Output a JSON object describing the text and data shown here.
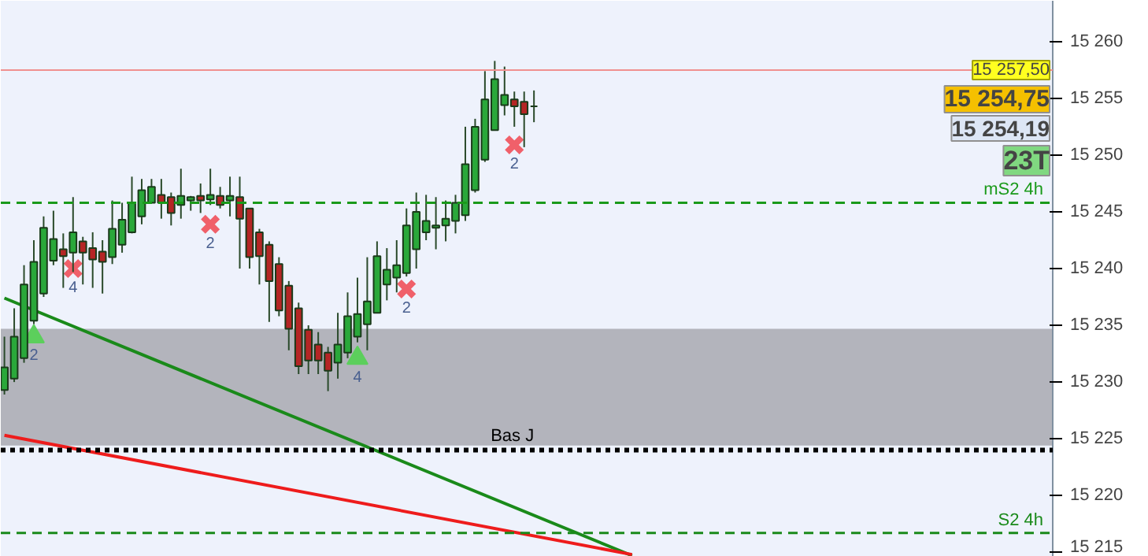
{
  "chart_data": {
    "type": "candlestick",
    "tick_labels": "y",
    "grid": false,
    "categories": [
      null,
      null,
      null,
      null,
      null,
      null,
      null,
      null,
      null,
      null,
      null,
      null,
      null,
      null,
      null,
      null,
      null,
      null,
      null,
      null,
      null,
      null,
      null,
      null,
      null,
      null,
      null,
      null,
      null,
      null,
      null,
      null,
      null,
      null,
      null,
      null,
      null,
      null,
      null,
      null,
      null,
      null,
      null,
      null,
      null,
      null,
      null,
      null,
      null,
      null,
      null,
      null,
      null,
      null,
      null,
      null,
      null,
      null,
      null,
      null,
      null,
      null,
      null,
      null,
      null,
      null,
      null,
      null,
      null,
      null,
      null,
      null,
      null,
      null,
      null,
      null,
      null,
      null,
      null,
      null,
      null,
      null,
      null,
      null,
      null,
      null,
      null,
      null,
      null,
      null,
      null,
      null,
      null,
      null,
      null,
      null,
      null,
      null,
      null,
      null,
      null,
      null,
      null,
      null,
      null,
      null,
      null
    ],
    "ohlc": [
      [
        15229.3,
        15234.0,
        15228.9,
        15231.3
      ],
      [
        15230.3,
        15236.5,
        15230.0,
        15234.0
      ],
      [
        15232.1,
        15240.3,
        15231.7,
        15238.6
      ],
      [
        15235.4,
        15242.5,
        15235.1,
        15240.6
      ],
      [
        15237.8,
        15244.6,
        15237.5,
        15243.6
      ],
      [
        15240.7,
        15245.1,
        15240.3,
        15242.6
      ],
      [
        15241.7,
        15243.1,
        15238.3,
        15241.1
      ],
      [
        15241.4,
        15246.3,
        15239.7,
        15243.2
      ],
      [
        15242.4,
        15242.8,
        15238.6,
        15241.4
      ],
      [
        15241.8,
        15243.2,
        15238.3,
        15240.8
      ],
      [
        15241.5,
        15242.5,
        15237.8,
        15240.6
      ],
      [
        15241.0,
        15246.0,
        15240.4,
        15243.5
      ],
      [
        15242.1,
        15245.8,
        15241.4,
        15244.3
      ],
      [
        15243.2,
        15248.1,
        15243.1,
        15245.8
      ],
      [
        15244.6,
        15247.9,
        15243.9,
        15246.9
      ],
      [
        15245.8,
        15247.9,
        15245.8,
        15247.2
      ],
      [
        15246.5,
        15247.9,
        15244.4,
        15245.8
      ],
      [
        15246.3,
        15246.7,
        15243.8,
        15244.9
      ],
      [
        15245.6,
        15248.8,
        15244.4,
        15246.4
      ],
      [
        15246.0,
        15246.4,
        15245.1,
        15246.3
      ],
      [
        15246.4,
        15247.5,
        15244.9,
        15246.0
      ],
      [
        15246.1,
        15248.8,
        15245.6,
        15246.5
      ],
      [
        15246.4,
        15247.2,
        15245.3,
        15245.6
      ],
      [
        15246.0,
        15248.1,
        15244.6,
        15246.4
      ],
      [
        15246.3,
        15248.1,
        15240.0,
        15244.4
      ],
      [
        15245.3,
        15245.3,
        15240.0,
        15241.0
      ],
      [
        15243.2,
        15243.5,
        15238.6,
        15241.1
      ],
      [
        15242.1,
        15242.4,
        15235.3,
        15238.9
      ],
      [
        15240.4,
        15241.0,
        15235.8,
        15236.3
      ],
      [
        15238.5,
        15238.9,
        15232.8,
        15234.7
      ],
      [
        15236.5,
        15237.0,
        15230.7,
        15231.4
      ],
      [
        15234.6,
        15235.0,
        15230.7,
        15231.9
      ],
      [
        15233.3,
        15234.4,
        15230.7,
        15231.9
      ],
      [
        15232.6,
        15233.1,
        15229.2,
        15231.0
      ],
      [
        15231.7,
        15236.1,
        15230.3,
        15233.3
      ],
      [
        15232.6,
        15237.9,
        15232.1,
        15235.8
      ],
      [
        15234.0,
        15239.2,
        15233.5,
        15236.0
      ],
      [
        15235.1,
        15241.0,
        15232.8,
        15237.1
      ],
      [
        15236.1,
        15242.4,
        15236.1,
        15241.1
      ],
      [
        15238.6,
        15241.8,
        15237.2,
        15239.9
      ],
      [
        15239.2,
        15242.5,
        15237.9,
        15240.3
      ],
      [
        15239.6,
        15245.3,
        15239.3,
        15243.8
      ],
      [
        15241.7,
        15246.7,
        15240.0,
        15245.0
      ],
      [
        15243.2,
        15246.5,
        15242.5,
        15244.2
      ],
      [
        15243.6,
        15246.3,
        15241.7,
        15243.8
      ],
      [
        15243.8,
        15246.0,
        15242.4,
        15244.4
      ],
      [
        15244.2,
        15246.5,
        15243.1,
        15245.8
      ],
      [
        15244.7,
        15252.5,
        15244.2,
        15249.2
      ],
      [
        15246.9,
        15253.2,
        15246.7,
        15252.5
      ],
      [
        15249.6,
        15257.4,
        15249.4,
        15254.9
      ],
      [
        15252.2,
        15258.3,
        15252.2,
        15256.7
      ],
      [
        15254.4,
        15257.8,
        15253.5,
        15255.3
      ],
      [
        15254.9,
        15255.6,
        15252.5,
        15254.3
      ],
      [
        15254.7,
        15255.6,
        15250.7,
        15253.6
      ],
      [
        15254.3,
        15255.7,
        15252.9,
        15254.3
      ],
      null,
      null,
      null,
      null,
      null,
      null,
      null,
      null,
      null,
      null,
      null,
      null,
      null,
      null,
      null,
      null,
      null,
      null,
      null,
      null,
      null,
      null,
      null,
      null,
      null,
      null,
      null,
      null,
      null,
      null,
      null,
      null,
      null,
      null,
      null,
      null,
      null,
      null,
      null,
      null,
      null,
      null,
      null,
      null,
      null,
      null,
      null,
      null,
      null,
      null,
      null,
      null
    ],
    "colors": [
      "#2aa83a",
      "#2aa83a",
      "#2aa83a",
      "#2aa83a",
      "#2aa83a",
      "#2aa83a",
      "#b52525",
      "#2aa83a",
      "#b52525",
      "#b52525",
      "#b52525",
      "#2aa83a",
      "#2aa83a",
      "#2aa83a",
      "#2aa83a",
      "#2aa83a",
      "#b52525",
      "#b52525",
      "#2aa83a",
      "#2aa83a",
      "#b52525",
      "#2aa83a",
      "#b52525",
      "#2aa83a",
      "#b52525",
      "#b52525",
      "#b52525",
      "#b52525",
      "#b52525",
      "#b52525",
      "#b52525",
      "#b52525",
      "#b52525",
      "#b52525",
      "#2aa83a",
      "#2aa83a",
      "#2aa83a",
      "#2aa83a",
      "#2aa83a",
      "#2aa83a",
      "#2aa83a",
      "#2aa83a",
      "#2aa83a",
      "#2aa83a",
      "#2aa83a",
      "#2aa83a",
      "#2aa83a",
      "#2aa83a",
      "#2aa83a",
      "#2aa83a",
      "#2aa83a",
      "#2aa83a",
      "#b52525",
      "#b52525",
      "#1a3a1a",
      null,
      null,
      null,
      null,
      null,
      null,
      null,
      null,
      null,
      null,
      null,
      null,
      null,
      null,
      null,
      null,
      null,
      null,
      null,
      null,
      null,
      null,
      null,
      null,
      null,
      null,
      null,
      null,
      null,
      null,
      null,
      null,
      null,
      null,
      null,
      null,
      null,
      null,
      null,
      null,
      null,
      null,
      null,
      null,
      null,
      null,
      null,
      null,
      null,
      null,
      null,
      null
    ],
    "ylim": [
      15214.6,
      15263.6
    ],
    "yticks": [
      {
        "value": 15215,
        "label": "15 215"
      },
      {
        "value": 15220,
        "label": "15 220"
      },
      {
        "value": 15225,
        "label": "15 225"
      },
      {
        "value": 15230,
        "label": "15 230"
      },
      {
        "value": 15235,
        "label": "15 235"
      },
      {
        "value": 15240,
        "label": "15 240"
      },
      {
        "value": 15245,
        "label": "15 245"
      },
      {
        "value": 15250,
        "label": "15 250"
      },
      {
        "value": 15255,
        "label": "15 255"
      },
      {
        "value": 15260,
        "label": "15 260"
      }
    ],
    "bands": [
      {
        "axis": "y",
        "from": 15224.4,
        "to": 15234.7,
        "color": "#b3b4bc"
      }
    ],
    "ref_lines": [
      {
        "axis": "y",
        "value": 15245.8,
        "label": "mS2 4h",
        "color": "#1a9a1a",
        "line_style": "dashed"
      },
      {
        "axis": "y",
        "value": 15216.7,
        "label": "S2 4h",
        "color": "#1a8a1a",
        "line_style": "dashed"
      },
      {
        "axis": "y",
        "value": 15224.0,
        "label": "Bas J",
        "color": "#000000",
        "line_style": "dotted"
      },
      {
        "axis": "y",
        "value": 15257.5,
        "label": "15 257,50",
        "color": "#f09090",
        "line_style": "solid"
      }
    ],
    "series": [
      {
        "type": "line",
        "color": "#1a8a1a",
        "line_style": "solid",
        "values": [
          15237.4,
          null,
          null,
          null,
          null,
          null,
          null,
          null,
          null,
          null,
          null,
          null,
          null,
          null,
          null,
          null,
          null,
          null,
          null,
          null,
          null,
          null,
          null,
          null,
          null,
          null,
          null,
          null,
          null,
          null,
          null,
          null,
          null,
          null,
          null,
          null,
          null,
          null,
          null,
          null,
          null,
          null,
          null,
          null,
          null,
          null,
          null,
          null,
          null,
          null,
          null,
          null,
          null,
          null,
          null,
          null,
          null,
          null,
          null,
          null,
          null,
          null,
          null,
          null,
          15214.7,
          null,
          null,
          null,
          null,
          null,
          null,
          null,
          null,
          null,
          null,
          null,
          null,
          null,
          null,
          null,
          null,
          null,
          null,
          null,
          null,
          null,
          null,
          null,
          null,
          null,
          null,
          null,
          null,
          null,
          null,
          null,
          null,
          null,
          null,
          null,
          null,
          null,
          null,
          null,
          null,
          null,
          null
        ]
      },
      {
        "type": "line",
        "color": "#ee1c1c",
        "line_style": "solid",
        "values": [
          15225.3,
          null,
          null,
          null,
          null,
          null,
          null,
          null,
          null,
          null,
          null,
          null,
          null,
          null,
          null,
          null,
          null,
          null,
          null,
          null,
          null,
          null,
          null,
          null,
          null,
          null,
          null,
          null,
          null,
          null,
          null,
          null,
          null,
          null,
          null,
          null,
          null,
          null,
          null,
          null,
          null,
          null,
          null,
          null,
          null,
          null,
          null,
          null,
          null,
          null,
          null,
          null,
          null,
          null,
          null,
          null,
          null,
          null,
          null,
          null,
          null,
          null,
          null,
          null,
          15214.8,
          null,
          null,
          null,
          null,
          null,
          null,
          null,
          null,
          null,
          null,
          null,
          null,
          null,
          null,
          null,
          null,
          null,
          null,
          null,
          null,
          null,
          null,
          null,
          null,
          null,
          null,
          null,
          null,
          null,
          null,
          null,
          null,
          null,
          null,
          null,
          null,
          null,
          null,
          null,
          null,
          null,
          null
        ]
      },
      {
        "type": "scatter",
        "marker": "cross",
        "color": "#f0606a",
        "values": [
          null,
          null,
          null,
          null,
          null,
          null,
          null,
          15240.0,
          null,
          null,
          null,
          null,
          null,
          null,
          null,
          null,
          null,
          null,
          null,
          null,
          null,
          15243.9,
          null,
          null,
          null,
          null,
          null,
          null,
          null,
          null,
          null,
          null,
          null,
          null,
          null,
          null,
          null,
          null,
          null,
          null,
          null,
          15238.2,
          null,
          null,
          null,
          null,
          null,
          null,
          null,
          null,
          null,
          null,
          15250.9,
          null,
          null,
          null,
          null,
          null,
          null,
          null,
          null,
          null,
          null,
          null,
          null,
          null,
          null,
          null,
          null,
          null,
          null,
          null,
          null,
          null,
          null,
          null,
          null,
          null,
          null,
          null,
          null,
          null,
          null,
          null,
          null,
          null,
          null,
          null,
          null,
          null,
          null,
          null,
          null,
          null,
          null,
          null,
          null,
          null,
          null,
          null,
          null,
          null,
          null,
          null,
          null,
          null,
          null
        ]
      },
      {
        "type": "scatter",
        "marker": "triangle",
        "color": "#5ccf5c",
        "values": [
          null,
          null,
          null,
          15234.0,
          null,
          null,
          null,
          null,
          null,
          null,
          null,
          null,
          null,
          null,
          null,
          null,
          null,
          null,
          null,
          null,
          null,
          null,
          null,
          null,
          null,
          null,
          null,
          null,
          null,
          null,
          null,
          null,
          null,
          null,
          null,
          null,
          15232.1,
          null,
          null,
          null,
          null,
          null,
          null,
          null,
          null,
          null,
          null,
          null,
          null,
          null,
          null,
          null,
          null,
          null,
          null,
          null,
          null,
          null,
          null,
          null,
          null,
          null,
          null,
          null,
          null,
          null,
          null,
          null,
          null,
          null,
          null,
          null,
          null,
          null,
          null,
          null,
          null,
          null,
          null,
          null,
          null,
          null,
          null,
          null,
          null,
          null,
          null,
          null,
          null,
          null,
          null,
          null,
          null,
          null,
          null,
          null,
          null,
          null,
          null,
          null,
          null,
          null,
          null,
          null,
          null,
          null,
          null
        ]
      }
    ],
    "annotations": [
      "15 254,75",
      "15 254,19",
      "23T",
      "4",
      "2",
      "2",
      "2",
      "2",
      "4"
    ]
  }
}
